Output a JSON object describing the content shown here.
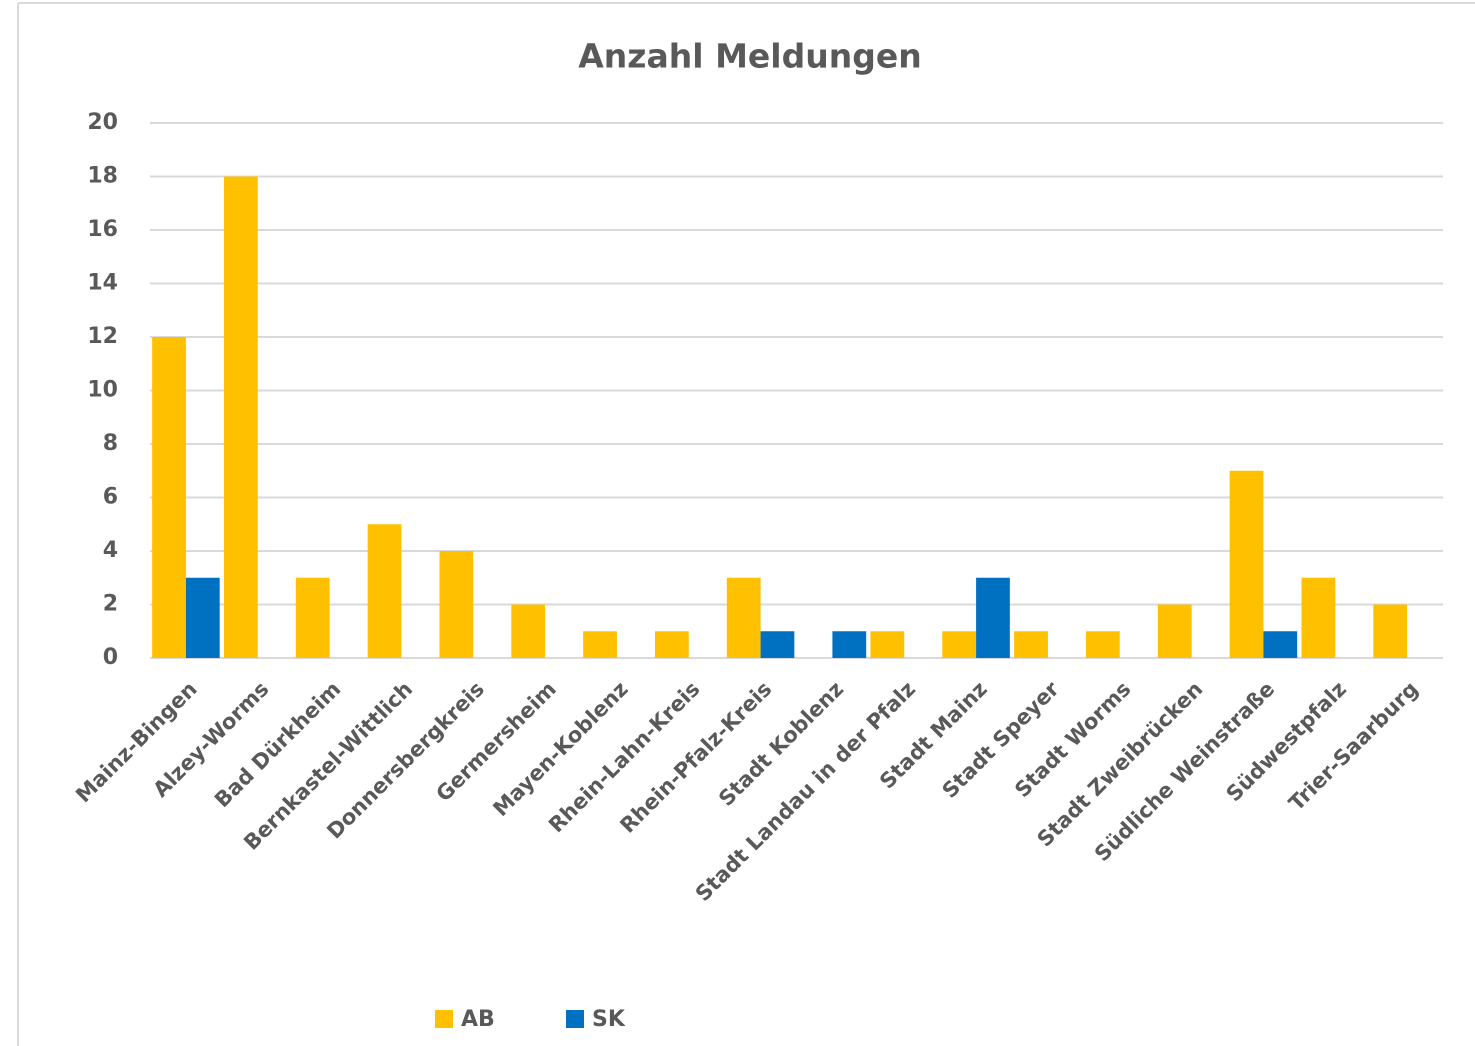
{
  "chart_data": {
    "type": "bar",
    "title": "Anzahl Meldungen",
    "categories": [
      "Mainz-Bingen",
      "Alzey-Worms",
      "Bad Dürkheim",
      "Bernkastel-Wittlich",
      "Donnersbergkreis",
      "Germersheim",
      "Mayen-Koblenz",
      "Rhein-Lahn-Kreis",
      "Rhein-Pfalz-Kreis",
      "Stadt Koblenz",
      "Stadt Landau in der Pfalz",
      "Stadt Mainz",
      "Stadt Speyer",
      "Stadt Worms",
      "Stadt Zweibrücken",
      "Südliche Weinstraße",
      "Südwestpfalz",
      "Trier-Saarburg"
    ],
    "series": [
      {
        "name": "AB",
        "color": "#FFC000",
        "values": [
          12,
          18,
          3,
          5,
          4,
          2,
          1,
          1,
          3,
          0,
          1,
          1,
          1,
          1,
          2,
          7,
          3,
          2
        ]
      },
      {
        "name": "SK",
        "color": "#0070C0",
        "values": [
          3,
          0,
          0,
          0,
          0,
          0,
          0,
          0,
          1,
          1,
          0,
          3,
          0,
          0,
          0,
          1,
          0,
          0
        ]
      }
    ],
    "ylim": [
      0,
      20
    ],
    "yticks": [
      0,
      2,
      4,
      6,
      8,
      10,
      12,
      14,
      16,
      18,
      20
    ],
    "grid": true,
    "legend": "bottom"
  }
}
